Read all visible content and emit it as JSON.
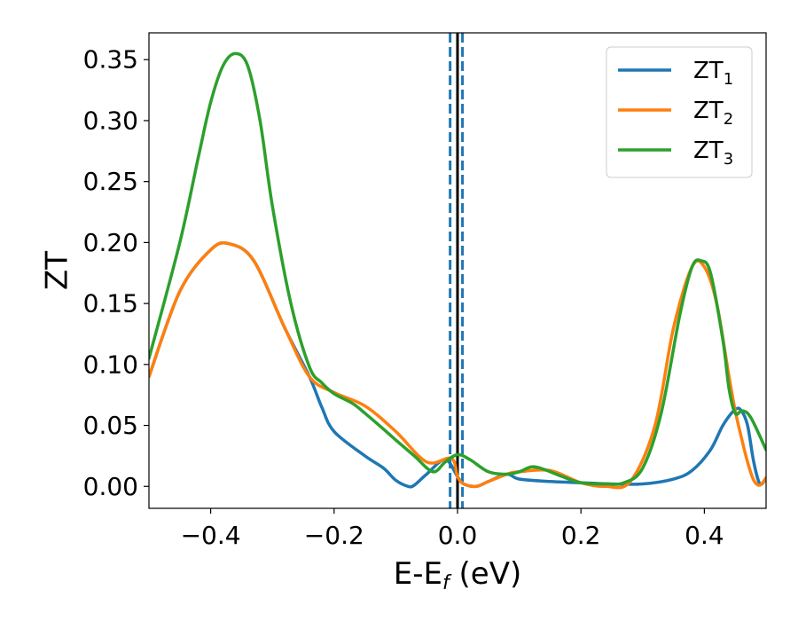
{
  "chart_data": {
    "type": "line",
    "title": "",
    "xlabel": {
      "base": "E-E",
      "subscript": "f",
      "unit": " (eV)"
    },
    "ylabel": "ZT",
    "xlim": [
      -0.5,
      0.5
    ],
    "ylim": [
      -0.018,
      0.372
    ],
    "x_ticks": [
      -0.4,
      -0.2,
      0.0,
      0.2,
      0.4
    ],
    "x_tick_labels": [
      "−0.4",
      "−0.2",
      "0.0",
      "0.2",
      "0.4"
    ],
    "y_ticks": [
      0.0,
      0.05,
      0.1,
      0.15,
      0.2,
      0.25,
      0.3,
      0.35
    ],
    "y_tick_labels": [
      "0.00",
      "0.05",
      "0.10",
      "0.15",
      "0.20",
      "0.25",
      "0.30",
      "0.35"
    ],
    "grid": false,
    "legend_position": "top-right",
    "vertical_lines": [
      {
        "x": -0.012,
        "style": "dashed",
        "color": "#1f77b4"
      },
      {
        "x": 0.0,
        "style": "solid",
        "color": "#000000"
      },
      {
        "x": 0.008,
        "style": "dashed",
        "color": "#1f77b4"
      }
    ],
    "series": [
      {
        "name": "ZT",
        "subscript": "1",
        "color": "#1f77b4",
        "x": [
          -0.5,
          -0.45,
          -0.4,
          -0.37,
          -0.33,
          -0.28,
          -0.24,
          -0.22,
          -0.2,
          -0.15,
          -0.12,
          -0.1,
          -0.08,
          -0.07,
          -0.05,
          -0.02,
          0.0,
          0.01,
          0.03,
          0.05,
          0.08,
          0.1,
          0.15,
          0.2,
          0.25,
          0.3,
          0.35,
          0.38,
          0.41,
          0.43,
          0.45,
          0.46,
          0.47,
          0.48,
          0.49,
          0.5
        ],
        "values": [
          0.09,
          0.16,
          0.194,
          0.199,
          0.185,
          0.13,
          0.09,
          0.065,
          0.045,
          0.025,
          0.015,
          0.005,
          0.0,
          0.001,
          0.01,
          0.022,
          0.008,
          0.002,
          0.0,
          0.004,
          0.01,
          0.006,
          0.004,
          0.003,
          0.002,
          0.002,
          0.006,
          0.013,
          0.03,
          0.05,
          0.063,
          0.062,
          0.05,
          0.02,
          0.002,
          0.007
        ]
      },
      {
        "name": "ZT",
        "subscript": "2",
        "color": "#ff7f0e",
        "x": [
          -0.5,
          -0.45,
          -0.4,
          -0.37,
          -0.33,
          -0.28,
          -0.24,
          -0.2,
          -0.15,
          -0.1,
          -0.05,
          -0.01,
          0.0,
          0.01,
          0.03,
          0.05,
          0.08,
          0.1,
          0.15,
          0.2,
          0.24,
          0.28,
          0.32,
          0.35,
          0.38,
          0.4,
          0.42,
          0.44,
          0.45,
          0.46,
          0.47,
          0.48,
          0.49,
          0.5
        ],
        "values": [
          0.09,
          0.16,
          0.194,
          0.199,
          0.185,
          0.13,
          0.09,
          0.077,
          0.066,
          0.045,
          0.02,
          0.023,
          0.008,
          0.002,
          0.0,
          0.004,
          0.01,
          0.012,
          0.013,
          0.003,
          0.0,
          0.004,
          0.05,
          0.13,
          0.18,
          0.18,
          0.15,
          0.09,
          0.062,
          0.04,
          0.02,
          0.005,
          0.001,
          0.007
        ]
      },
      {
        "name": "ZT",
        "subscript": "3",
        "color": "#2ca02c",
        "x": [
          -0.5,
          -0.45,
          -0.42,
          -0.4,
          -0.38,
          -0.36,
          -0.34,
          -0.32,
          -0.3,
          -0.27,
          -0.24,
          -0.22,
          -0.2,
          -0.17,
          -0.15,
          -0.12,
          -0.1,
          -0.07,
          -0.04,
          -0.02,
          0.0,
          0.02,
          0.05,
          0.08,
          0.1,
          0.12,
          0.14,
          0.17,
          0.2,
          0.24,
          0.27,
          0.3,
          0.33,
          0.36,
          0.38,
          0.395,
          0.41,
          0.43,
          0.44,
          0.45,
          0.46,
          0.47,
          0.48,
          0.5
        ],
        "values": [
          0.105,
          0.2,
          0.27,
          0.315,
          0.345,
          0.355,
          0.345,
          0.3,
          0.23,
          0.15,
          0.098,
          0.085,
          0.076,
          0.068,
          0.06,
          0.047,
          0.038,
          0.025,
          0.012,
          0.02,
          0.026,
          0.022,
          0.012,
          0.01,
          0.012,
          0.016,
          0.014,
          0.008,
          0.003,
          0.002,
          0.003,
          0.015,
          0.06,
          0.14,
          0.18,
          0.185,
          0.175,
          0.12,
          0.08,
          0.06,
          0.062,
          0.06,
          0.052,
          0.03
        ]
      }
    ]
  }
}
